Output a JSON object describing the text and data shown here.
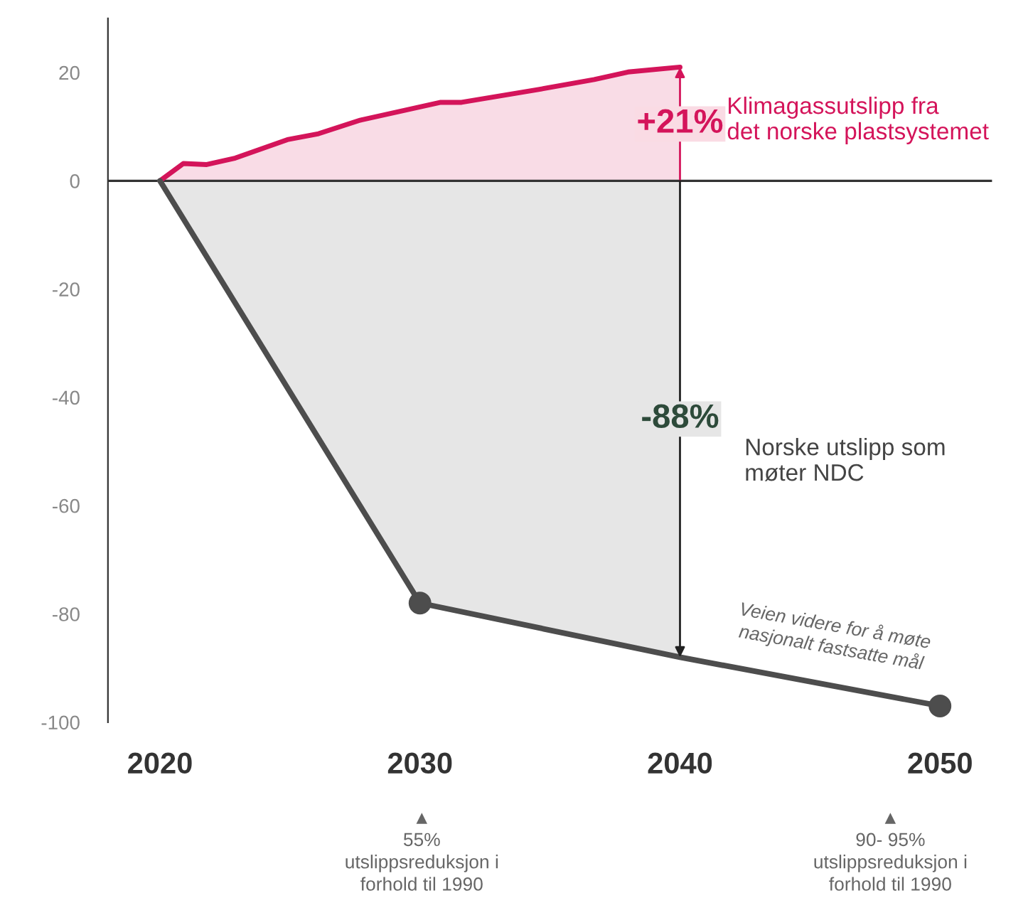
{
  "chart_data": {
    "type": "line",
    "series": [
      {
        "type": "area",
        "color": "#d4145a",
        "x": [
          2020,
          2020.9,
          2021.8,
          2022.9,
          2024.9,
          2026.1,
          2027.7,
          2030.8,
          2031.6,
          2034.6,
          2036.7,
          2038,
          2040
        ],
        "values": [
          0,
          3.2,
          3.0,
          4.2,
          7.6,
          8.7,
          11.2,
          14.5,
          14.5,
          16.9,
          18.7,
          20.1,
          21
        ]
      },
      {
        "type": "area",
        "color": "#e6e6e6",
        "x": [
          2020,
          2030,
          2040
        ],
        "values": [
          0,
          -78,
          -88
        ]
      },
      {
        "color": "#4d4d4d",
        "x": [
          2020,
          2030,
          2040,
          2050
        ],
        "values": [
          0,
          -78,
          -88,
          -97
        ]
      },
      {
        "type": "scatter",
        "color": "#4d4d4d",
        "marker": "circle",
        "x": [
          2030,
          2050
        ],
        "values": [
          -78,
          -97
        ]
      }
    ],
    "xlim": [
      2018,
      2052
    ],
    "xticks": [
      2020,
      2030,
      2040,
      2050
    ],
    "ylim": [
      -100,
      30
    ],
    "yticks": [
      -100,
      -80,
      -60,
      -40,
      -20,
      0,
      20
    ],
    "ref_lines": [
      {
        "axis": "y",
        "value": 0,
        "color": "#333333"
      }
    ],
    "grid": false,
    "annotations": [
      {
        "text": "+21%",
        "x": 2040,
        "y": 10.5
      },
      "Klimagassutslipp fra\ndet norske plastsystemet",
      {
        "text": "-88%",
        "x": 2040,
        "y": -44
      },
      "Norske utslipp som\nmøter NDC",
      "Veien videre for å møte\nnasjonalt fastsatte mål",
      "▲\n55%\nutslippsreduksjon i\nforhold til 1990",
      "▲\n90- 95%\nutslippsreduksjon i\nforhold til 1990"
    ]
  }
}
